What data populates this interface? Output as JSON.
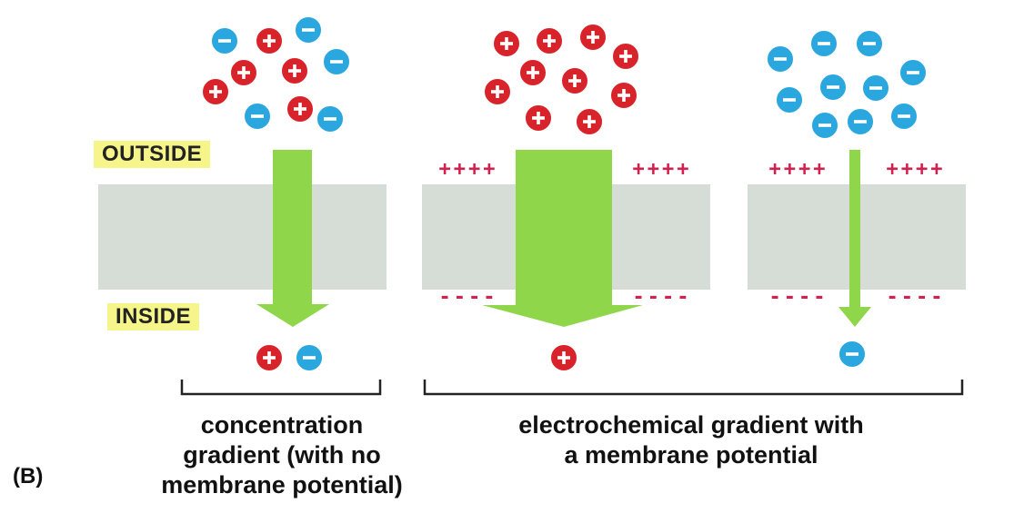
{
  "labels": {
    "outside": "OUTSIDE",
    "inside": "INSIDE",
    "panel": "(B)"
  },
  "captions": {
    "concentration": [
      "concentration",
      "gradient (with no",
      "membrane potential)"
    ],
    "electrochemical": [
      "electrochemical gradient with",
      "a membrane potential"
    ]
  },
  "colors": {
    "membrane": "#d5ddd6",
    "arrow": "#8fd64a",
    "cation": "#d8232a",
    "anion": "#2aa7df",
    "outside_charge": "#d0214f",
    "inside_charge": "#d0214f",
    "label_bg": "#f6f58a"
  },
  "panels": [
    {
      "name": "concentration",
      "outside_charges": "",
      "inside_charges": "",
      "ions_outside": [
        "-",
        "+",
        "-",
        "-",
        "+",
        "+",
        "+",
        "-",
        "+",
        "-",
        "+"
      ],
      "ions_inside": [
        "+",
        "-"
      ]
    },
    {
      "name": "electrochemical-cation",
      "outside_charges": "++++",
      "inside_charges": "----",
      "ions_outside": [
        "+",
        "+",
        "+",
        "+",
        "+",
        "+",
        "+",
        "+",
        "+",
        "+",
        "+"
      ],
      "ions_inside": [
        "+"
      ]
    },
    {
      "name": "electrochemical-anion",
      "outside_charges": "++++",
      "inside_charges": "----",
      "ions_outside": [
        "-",
        "-",
        "-",
        "-",
        "-",
        "-",
        "-",
        "-",
        "-",
        "-",
        "-"
      ],
      "ions_inside": [
        "-"
      ]
    }
  ]
}
